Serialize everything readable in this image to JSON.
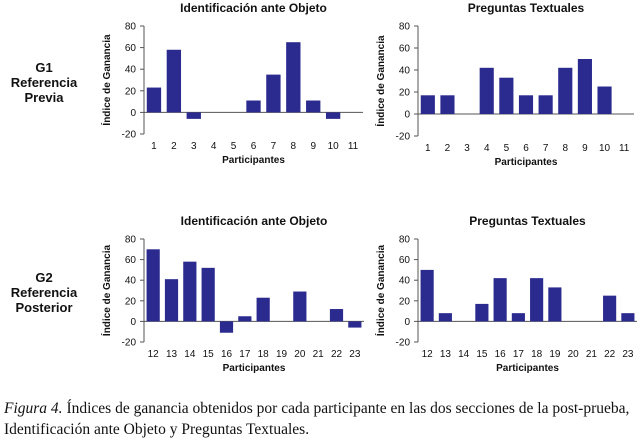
{
  "row_labels": [
    {
      "lines": [
        "G1",
        "Referencia",
        "Previa"
      ]
    },
    {
      "lines": [
        "G2",
        "Referencia",
        "Posterior"
      ]
    }
  ],
  "caption": {
    "label": "Figura 4.",
    "text": " Índices de ganancia obtenidos por cada participante en las dos secciones de la post-prueba, Identificación ante Objeto y Preguntas Textuales."
  },
  "chart_data": [
    {
      "type": "bar",
      "title": "Identificación ante Objeto",
      "xlabel": "Participantes",
      "ylabel": "Índice de Ganancia",
      "ylim": [
        -20,
        80
      ],
      "yticks": [
        -20,
        0,
        20,
        40,
        60,
        80
      ],
      "categories": [
        "1",
        "2",
        "3",
        "4",
        "5",
        "6",
        "7",
        "8",
        "9",
        "10",
        "11"
      ],
      "values": [
        23,
        58,
        -6,
        0,
        0,
        11,
        35,
        65,
        11,
        -6,
        0
      ],
      "color": "#2b2b8f"
    },
    {
      "type": "bar",
      "title": "Preguntas Textuales",
      "xlabel": "Participantes",
      "ylabel": "Índice de Ganancia",
      "ylim": [
        -20,
        80
      ],
      "yticks": [
        -20,
        0,
        20,
        40,
        60,
        80
      ],
      "categories": [
        "1",
        "2",
        "3",
        "4",
        "5",
        "6",
        "7",
        "8",
        "9",
        "10",
        "11"
      ],
      "values": [
        17,
        17,
        0,
        42,
        33,
        17,
        17,
        42,
        50,
        25,
        0
      ],
      "color": "#2b2b8f"
    },
    {
      "type": "bar",
      "title": "Identificación ante Objeto",
      "xlabel": "Participantes",
      "ylabel": "Índice de Ganancia",
      "ylim": [
        -20,
        80
      ],
      "yticks": [
        -20,
        0,
        20,
        40,
        60,
        80
      ],
      "categories": [
        "12",
        "13",
        "14",
        "15",
        "16",
        "17",
        "18",
        "19",
        "20",
        "21",
        "22",
        "23"
      ],
      "values": [
        70,
        41,
        58,
        52,
        -11,
        5,
        23,
        0,
        29,
        0,
        12,
        -6
      ],
      "color": "#2b2b8f"
    },
    {
      "type": "bar",
      "title": "Preguntas Textuales",
      "xlabel": "Participantes",
      "ylabel": "Índice de Ganancia",
      "ylim": [
        -20,
        80
      ],
      "yticks": [
        -20,
        0,
        20,
        40,
        60,
        80
      ],
      "categories": [
        "12",
        "13",
        "14",
        "15",
        "16",
        "17",
        "18",
        "19",
        "20",
        "21",
        "22",
        "23"
      ],
      "values": [
        50,
        8,
        0,
        17,
        42,
        8,
        42,
        33,
        0,
        0,
        25,
        8
      ],
      "color": "#2b2b8f"
    }
  ]
}
